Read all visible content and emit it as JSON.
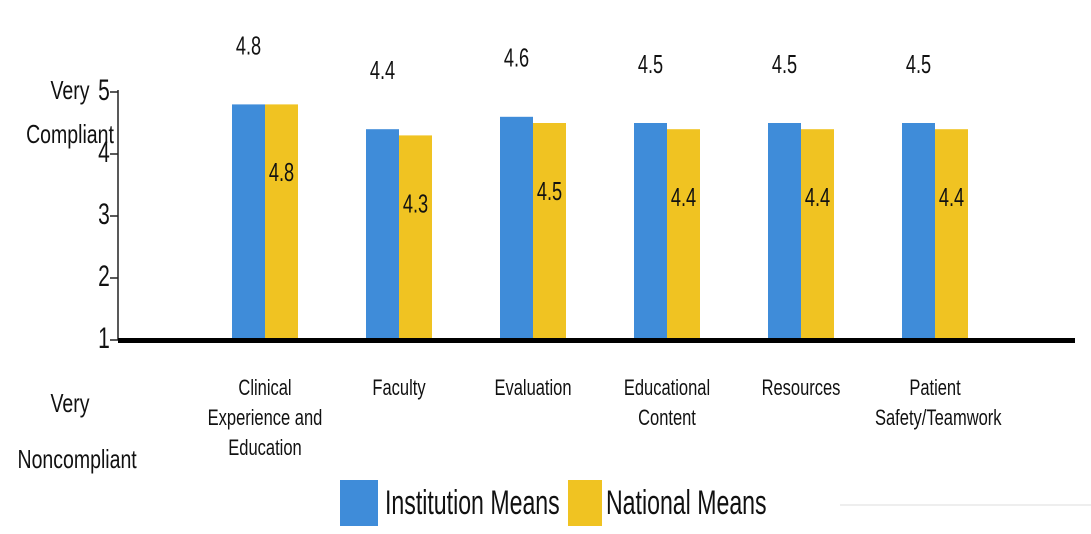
{
  "chart_data": {
    "type": "bar",
    "y_label_top": "Very Compliant",
    "y_label_bottom": "Very Noncompliant",
    "categories": [
      "Clinical Experience and Education",
      "Faculty",
      "Evaluation",
      "Educational Content",
      "Resources",
      "Patient Safety/Teamwork"
    ],
    "series": [
      {
        "name": "Institution Means",
        "color": "#3f8cd9",
        "values": [
          4.8,
          4.4,
          4.6,
          4.5,
          4.5,
          4.5
        ]
      },
      {
        "name": "National Means",
        "color": "#f0c322",
        "values": [
          4.8,
          4.3,
          4.5,
          4.4,
          4.4,
          4.4
        ]
      }
    ],
    "ylim": [
      1,
      5
    ],
    "yticks": [
      1,
      2,
      3,
      4,
      5
    ]
  }
}
